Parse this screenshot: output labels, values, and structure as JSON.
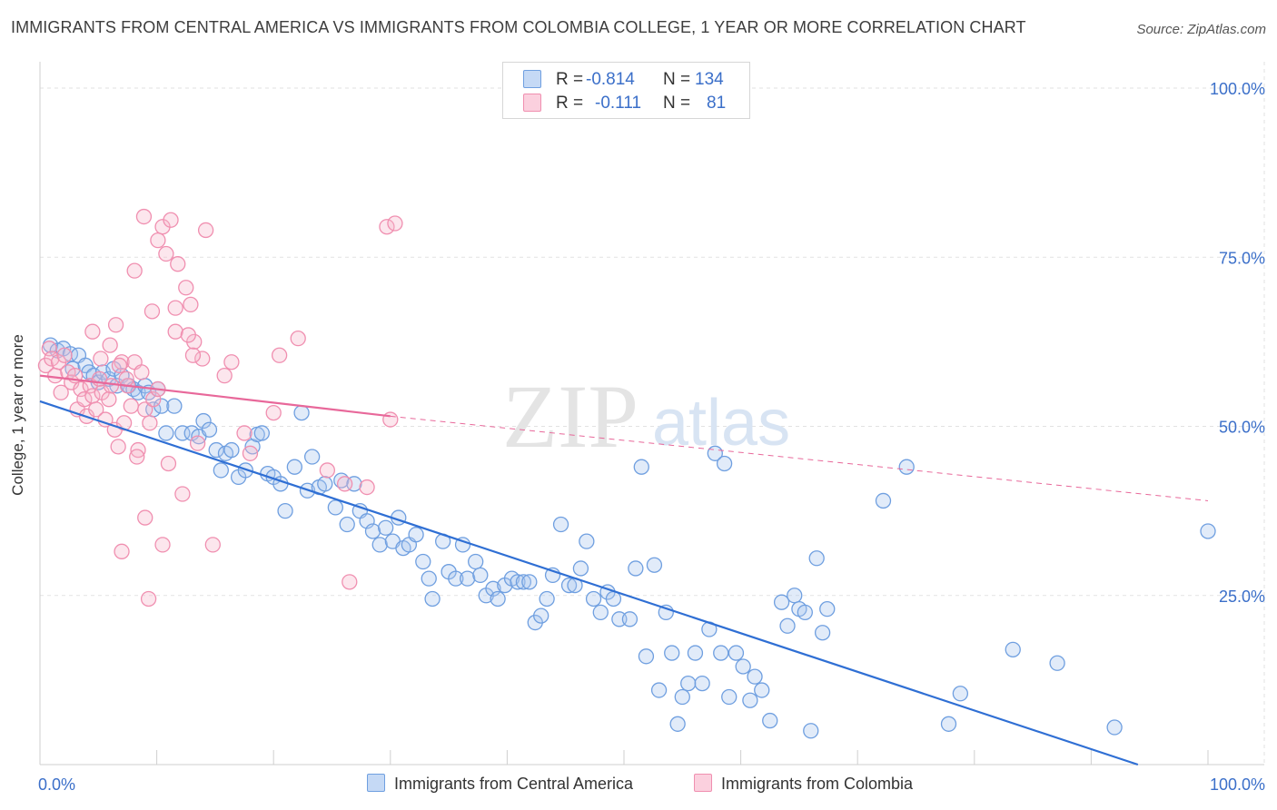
{
  "title": "IMMIGRANTS FROM CENTRAL AMERICA VS IMMIGRANTS FROM COLOMBIA COLLEGE, 1 YEAR OR MORE CORRELATION CHART",
  "source": "Source: ZipAtlas.com",
  "watermark": {
    "zip": "ZIP",
    "atlas": "atlas"
  },
  "legend_stats": [
    {
      "r_label": "R =",
      "r_value": "-0.814",
      "n_label": "N =",
      "n_value": "134",
      "color": "#6f9fe0"
    },
    {
      "r_label": "R =",
      "r_value": "-0.111",
      "n_label": "N =",
      "n_value": "81",
      "color": "#f08fb0"
    }
  ],
  "bottom_legend": [
    "Immigrants from Central America",
    "Immigrants from Colombia"
  ],
  "chart_data": {
    "type": "scatter",
    "title": "IMMIGRANTS FROM CENTRAL AMERICA VS IMMIGRANTS FROM COLOMBIA COLLEGE, 1 YEAR OR MORE CORRELATION CHART",
    "xlabel": "",
    "ylabel": "College, 1 year or more",
    "xlim": [
      0,
      100
    ],
    "ylim": [
      0,
      100
    ],
    "x_tick_labels": [
      "0.0%",
      "100.0%"
    ],
    "y_tick_labels": [
      "100.0%",
      "75.0%",
      "50.0%",
      "25.0%"
    ],
    "y_ticks": [
      100,
      75,
      50,
      25
    ],
    "grid": true,
    "legend_position": "top-center",
    "series": [
      {
        "name": "Immigrants from Central America",
        "color": "#6f9fe0",
        "trend": {
          "x": [
            0,
            94
          ],
          "y": [
            53.7,
            0
          ],
          "style": "solid"
        },
        "points": [
          [
            0.9,
            62.0
          ],
          [
            1.5,
            61.2
          ],
          [
            2.0,
            61.5
          ],
          [
            2.6,
            60.7
          ],
          [
            2.8,
            58.5
          ],
          [
            3.3,
            60.5
          ],
          [
            3.9,
            59.0
          ],
          [
            4.2,
            58.0
          ],
          [
            4.6,
            57.5
          ],
          [
            5.0,
            56.5
          ],
          [
            5.4,
            58.0
          ],
          [
            5.9,
            57.0
          ],
          [
            6.3,
            58.5
          ],
          [
            6.6,
            56.0
          ],
          [
            7.0,
            57.5
          ],
          [
            7.6,
            56.0
          ],
          [
            8.0,
            55.5
          ],
          [
            8.4,
            55.0
          ],
          [
            9.0,
            56.0
          ],
          [
            9.3,
            55.0
          ],
          [
            9.7,
            52.5
          ],
          [
            10.1,
            55.5
          ],
          [
            10.4,
            53.0
          ],
          [
            10.8,
            49.0
          ],
          [
            11.5,
            53.0
          ],
          [
            12.2,
            49.0
          ],
          [
            13.0,
            49.0
          ],
          [
            13.6,
            48.5
          ],
          [
            14.0,
            50.8
          ],
          [
            14.5,
            49.5
          ],
          [
            15.1,
            46.5
          ],
          [
            15.5,
            43.5
          ],
          [
            15.9,
            46.0
          ],
          [
            16.4,
            46.5
          ],
          [
            17.0,
            42.5
          ],
          [
            17.6,
            43.5
          ],
          [
            18.2,
            47.0
          ],
          [
            18.6,
            48.8
          ],
          [
            19.0,
            49.0
          ],
          [
            19.5,
            43.0
          ],
          [
            20.0,
            42.5
          ],
          [
            20.6,
            41.5
          ],
          [
            21.0,
            37.5
          ],
          [
            21.8,
            44.0
          ],
          [
            22.4,
            52.0
          ],
          [
            22.9,
            40.5
          ],
          [
            23.3,
            45.5
          ],
          [
            23.9,
            41.0
          ],
          [
            24.4,
            41.5
          ],
          [
            25.3,
            38.0
          ],
          [
            25.8,
            42.0
          ],
          [
            26.3,
            35.5
          ],
          [
            26.9,
            41.5
          ],
          [
            27.4,
            37.5
          ],
          [
            28.0,
            36.0
          ],
          [
            28.5,
            34.5
          ],
          [
            29.1,
            32.5
          ],
          [
            29.6,
            35.0
          ],
          [
            30.2,
            33.0
          ],
          [
            30.7,
            36.5
          ],
          [
            31.1,
            32.0
          ],
          [
            31.6,
            32.5
          ],
          [
            32.2,
            34.0
          ],
          [
            32.8,
            30.0
          ],
          [
            33.3,
            27.5
          ],
          [
            33.6,
            24.5
          ],
          [
            34.5,
            33.0
          ],
          [
            35.0,
            28.5
          ],
          [
            35.6,
            27.5
          ],
          [
            36.2,
            32.5
          ],
          [
            36.6,
            27.5
          ],
          [
            37.3,
            30.0
          ],
          [
            37.7,
            28.0
          ],
          [
            38.2,
            25.0
          ],
          [
            38.8,
            26.0
          ],
          [
            39.2,
            24.5
          ],
          [
            39.8,
            26.5
          ],
          [
            40.4,
            27.5
          ],
          [
            40.9,
            27.0
          ],
          [
            41.4,
            27.0
          ],
          [
            41.9,
            27.0
          ],
          [
            42.4,
            21.0
          ],
          [
            42.9,
            22.0
          ],
          [
            43.4,
            24.5
          ],
          [
            43.9,
            28.0
          ],
          [
            44.6,
            35.5
          ],
          [
            45.3,
            26.5
          ],
          [
            45.8,
            26.5
          ],
          [
            46.3,
            29.0
          ],
          [
            46.8,
            33.0
          ],
          [
            47.4,
            24.5
          ],
          [
            48.0,
            22.5
          ],
          [
            48.6,
            25.5
          ],
          [
            49.1,
            24.5
          ],
          [
            49.6,
            21.5
          ],
          [
            50.5,
            21.5
          ],
          [
            51.0,
            29.0
          ],
          [
            51.5,
            44.0
          ],
          [
            51.9,
            16.0
          ],
          [
            52.6,
            29.5
          ],
          [
            53.0,
            11.0
          ],
          [
            53.6,
            22.5
          ],
          [
            54.1,
            16.5
          ],
          [
            54.6,
            6.0
          ],
          [
            55.0,
            10.0
          ],
          [
            55.5,
            12.0
          ],
          [
            56.1,
            16.5
          ],
          [
            56.7,
            12.0
          ],
          [
            57.3,
            20.0
          ],
          [
            57.8,
            46.0
          ],
          [
            58.3,
            16.5
          ],
          [
            58.6,
            44.5
          ],
          [
            59.0,
            10.0
          ],
          [
            59.6,
            16.5
          ],
          [
            60.2,
            14.5
          ],
          [
            60.8,
            9.5
          ],
          [
            61.2,
            13.0
          ],
          [
            61.8,
            11.0
          ],
          [
            62.5,
            6.5
          ],
          [
            63.5,
            24.0
          ],
          [
            64.0,
            20.5
          ],
          [
            64.6,
            25.0
          ],
          [
            65.0,
            23.0
          ],
          [
            65.5,
            22.5
          ],
          [
            66.0,
            5.0
          ],
          [
            66.5,
            30.5
          ],
          [
            67.0,
            19.5
          ],
          [
            67.4,
            23.0
          ],
          [
            72.2,
            39.0
          ],
          [
            74.2,
            44.0
          ],
          [
            77.8,
            6.0
          ],
          [
            78.8,
            10.5
          ],
          [
            83.3,
            17.0
          ],
          [
            87.1,
            15.0
          ],
          [
            100.0,
            34.5
          ],
          [
            92.0,
            5.5
          ]
        ]
      },
      {
        "name": "Immigrants from Colombia",
        "color": "#f08fb0",
        "trend": {
          "x": [
            0,
            30
          ],
          "y": [
            57.5,
            51.5
          ],
          "style": "solid",
          "dashed_extension": {
            "x": [
              30,
              100
            ],
            "y": [
              51.5,
              39.0
            ]
          }
        },
        "points": [
          [
            0.5,
            59.0
          ],
          [
            0.8,
            61.5
          ],
          [
            1.0,
            60.0
          ],
          [
            1.3,
            57.5
          ],
          [
            1.6,
            59.5
          ],
          [
            1.8,
            55.0
          ],
          [
            2.1,
            60.5
          ],
          [
            2.4,
            58.0
          ],
          [
            2.7,
            56.5
          ],
          [
            3.0,
            57.5
          ],
          [
            3.2,
            52.5
          ],
          [
            3.5,
            55.5
          ],
          [
            3.8,
            54.0
          ],
          [
            4.0,
            51.5
          ],
          [
            4.3,
            56.0
          ],
          [
            4.5,
            54.5
          ],
          [
            4.8,
            52.5
          ],
          [
            5.1,
            57.0
          ],
          [
            5.3,
            55.0
          ],
          [
            5.6,
            51.0
          ],
          [
            5.9,
            54.0
          ],
          [
            6.1,
            56.0
          ],
          [
            6.4,
            49.5
          ],
          [
            6.7,
            47.0
          ],
          [
            7.0,
            59.5
          ],
          [
            7.2,
            50.5
          ],
          [
            7.5,
            56.0
          ],
          [
            7.8,
            53.0
          ],
          [
            8.1,
            59.5
          ],
          [
            8.4,
            46.5
          ],
          [
            8.7,
            58.0
          ],
          [
            9.0,
            52.5
          ],
          [
            9.4,
            50.5
          ],
          [
            9.7,
            54.0
          ],
          [
            10.1,
            55.5
          ],
          [
            4.5,
            64.0
          ],
          [
            5.2,
            60.0
          ],
          [
            6.0,
            62.0
          ],
          [
            6.8,
            59.0
          ],
          [
            7.4,
            57.0
          ],
          [
            9.0,
            36.5
          ],
          [
            10.5,
            32.5
          ],
          [
            11.0,
            44.5
          ],
          [
            12.2,
            40.0
          ],
          [
            13.5,
            47.5
          ],
          [
            14.8,
            32.5
          ],
          [
            17.5,
            49.0
          ],
          [
            20.0,
            52.0
          ],
          [
            20.5,
            60.5
          ],
          [
            22.1,
            63.0
          ],
          [
            24.6,
            43.5
          ],
          [
            26.1,
            41.5
          ],
          [
            26.5,
            27.0
          ],
          [
            8.1,
            73.0
          ],
          [
            8.9,
            81.0
          ],
          [
            10.5,
            79.5
          ],
          [
            11.8,
            74.0
          ],
          [
            12.5,
            70.5
          ],
          [
            13.2,
            62.5
          ],
          [
            12.9,
            68.0
          ],
          [
            14.2,
            79.0
          ],
          [
            10.8,
            75.5
          ],
          [
            11.2,
            80.5
          ],
          [
            9.6,
            67.0
          ],
          [
            11.6,
            67.5
          ],
          [
            13.9,
            60.0
          ],
          [
            10.1,
            77.5
          ],
          [
            29.7,
            79.5
          ],
          [
            28.0,
            41.0
          ],
          [
            30.0,
            51.0
          ],
          [
            6.5,
            65.0
          ],
          [
            7.0,
            31.5
          ],
          [
            8.3,
            45.5
          ],
          [
            9.3,
            24.5
          ],
          [
            11.6,
            64.0
          ],
          [
            12.7,
            63.5
          ],
          [
            13.1,
            60.5
          ],
          [
            15.8,
            57.5
          ],
          [
            16.4,
            59.5
          ],
          [
            18.0,
            46.0
          ],
          [
            30.4,
            80.0
          ]
        ]
      }
    ]
  }
}
